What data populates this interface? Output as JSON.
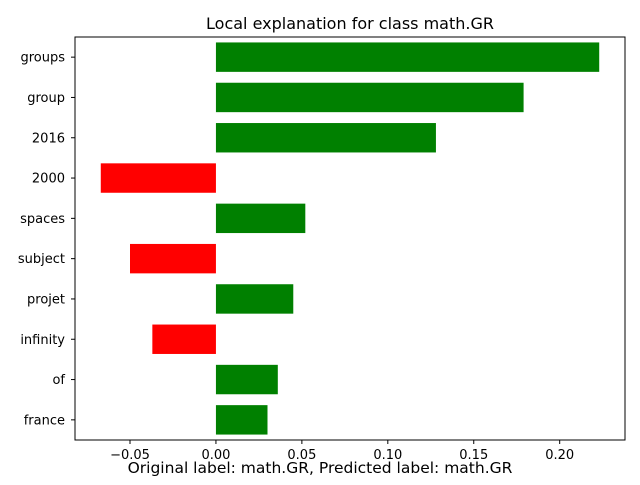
{
  "chart_data": {
    "type": "bar",
    "orientation": "horizontal",
    "title": "Local explanation for class math.GR",
    "xlabel": "",
    "ylabel": "",
    "categories": [
      "groups",
      "group",
      "2016",
      "2000",
      "spaces",
      "subject",
      "projet",
      "infinity",
      "of",
      "france"
    ],
    "values": [
      0.223,
      0.179,
      0.128,
      -0.067,
      0.052,
      -0.05,
      0.045,
      -0.037,
      0.036,
      0.03
    ],
    "xlim": [
      -0.082,
      0.238
    ],
    "xticks": [
      -0.05,
      0.0,
      0.05,
      0.1,
      0.15,
      0.2
    ],
    "xtick_labels": [
      "−0.05",
      "0.00",
      "0.05",
      "0.10",
      "0.15",
      "0.20"
    ],
    "grid": false,
    "colors": {
      "positive": "#008000",
      "negative": "#ff0000"
    }
  },
  "caption": "Original label: math.GR, Predicted label: math.GR"
}
